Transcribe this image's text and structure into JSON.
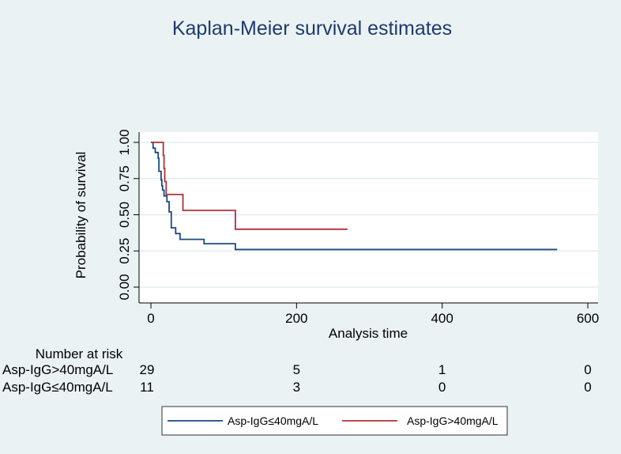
{
  "chart_data": {
    "type": "line",
    "title": "Kaplan-Meier survival estimates",
    "xlabel": "Analysis time",
    "ylabel": "Probability of survival",
    "xlim": [
      0,
      600
    ],
    "ylim": [
      0,
      1
    ],
    "xticks": [
      0,
      200,
      400,
      600
    ],
    "xtick_labels": [
      "0",
      "200",
      "400",
      "600"
    ],
    "yticks": [
      0,
      0.25,
      0.5,
      0.75,
      1
    ],
    "ytick_labels": [
      "0.00",
      "0.25",
      "0.50",
      "0.75",
      "1.00"
    ],
    "grid": true,
    "legend_position": "bottom",
    "series": [
      {
        "name": "Asp-IgG≤40mgA/L",
        "color": "#1a4a80",
        "steps": [
          [
            0,
            1
          ],
          [
            3,
            0.96
          ],
          [
            6,
            0.93
          ],
          [
            10,
            0.89
          ],
          [
            11,
            0.8
          ],
          [
            14,
            0.74
          ],
          [
            15,
            0.7
          ],
          [
            16,
            0.67
          ],
          [
            18,
            0.63
          ],
          [
            22,
            0.59
          ],
          [
            25,
            0.52
          ],
          [
            28,
            0.41
          ],
          [
            34,
            0.37
          ],
          [
            40,
            0.33
          ],
          [
            73,
            0.3
          ],
          [
            116,
            0.26
          ]
        ],
        "end": 558
      },
      {
        "name": "Asp-IgG>40mgA/L",
        "color": "#b0303a",
        "steps": [
          [
            0,
            1
          ],
          [
            17,
            0.91
          ],
          [
            18,
            0.82
          ],
          [
            19,
            0.73
          ],
          [
            21,
            0.64
          ],
          [
            44,
            0.53
          ],
          [
            116,
            0.4
          ]
        ],
        "end": 270
      }
    ],
    "risk_table": {
      "title": "Number at risk",
      "rows": [
        {
          "label": "Asp-IgG>40mgA/L",
          "values": [
            "29",
            "5",
            "1",
            "0"
          ]
        },
        {
          "label": "Asp-IgG≤40mgA/L",
          "values": [
            "11",
            "3",
            "0",
            "0"
          ]
        }
      ]
    }
  }
}
